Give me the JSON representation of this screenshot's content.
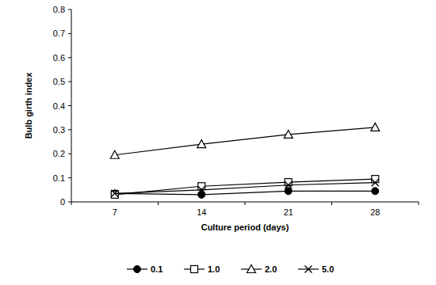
{
  "chart_data": {
    "type": "line",
    "x_label": "Culture period (days)",
    "y_label": "Bulb girth index",
    "categories": [
      "7",
      "14",
      "21",
      "28"
    ],
    "series": [
      {
        "name": "0.1",
        "color": "#000000",
        "marker": "circle",
        "values": [
          0.035,
          0.03,
          0.045,
          0.045
        ]
      },
      {
        "name": "1.0",
        "color": "#000000",
        "marker": "square",
        "values": [
          0.03,
          0.065,
          0.082,
          0.095
        ]
      },
      {
        "name": "2.0",
        "color": "#000000",
        "marker": "triangle",
        "values": [
          0.195,
          0.24,
          0.28,
          0.31
        ]
      },
      {
        "name": "5.0",
        "color": "#000000",
        "marker": "x",
        "values": [
          0.035,
          0.05,
          0.07,
          0.08
        ]
      }
    ],
    "ylim": [
      0,
      0.8
    ],
    "yticks": [
      0,
      0.1,
      0.2,
      0.3,
      0.4,
      0.5,
      0.6,
      0.7,
      0.8
    ],
    "grid": false,
    "legend": "bottom"
  }
}
